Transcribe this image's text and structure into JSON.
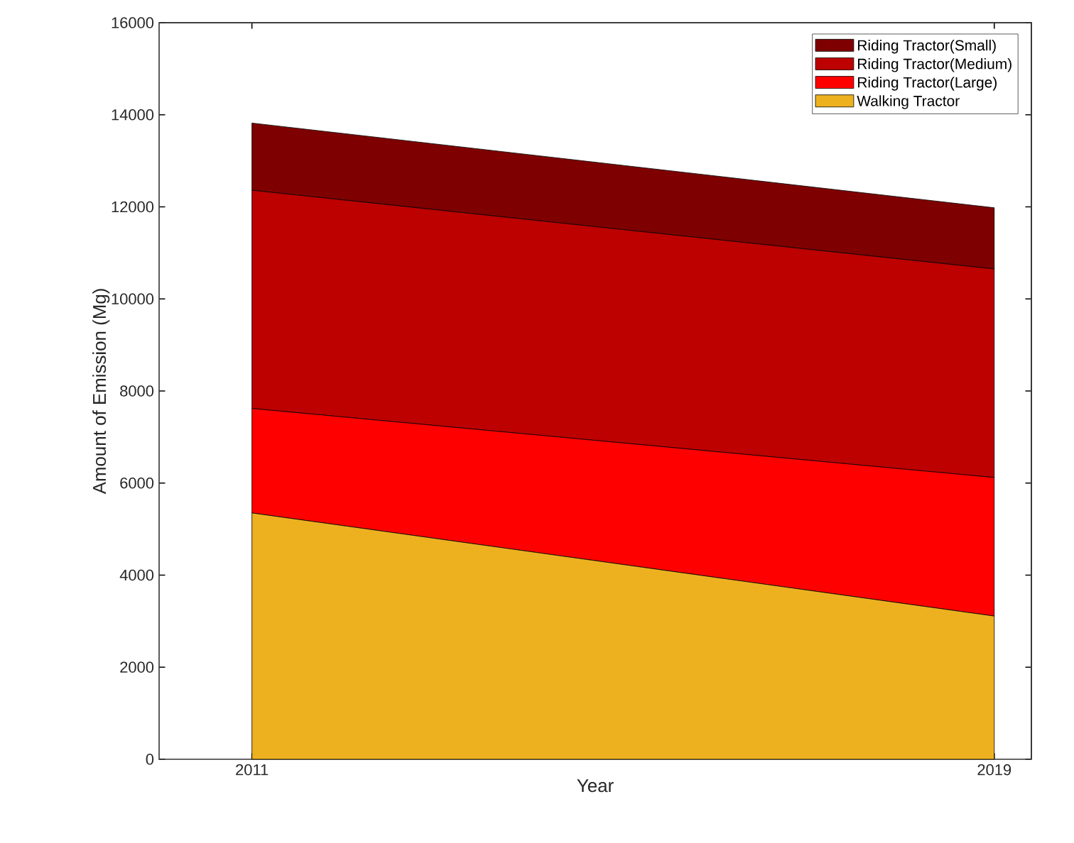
{
  "chart_data": {
    "type": "area",
    "stacked": true,
    "xlabel": "Year",
    "ylabel": "Amount of Emission (Mg)",
    "x": [
      2011,
      2019
    ],
    "series": [
      {
        "name": "Walking Tractor",
        "color": "#edb120",
        "values": [
          5350,
          3110
        ]
      },
      {
        "name": "Riding Tractor(Large)",
        "color": "#ff0000",
        "values": [
          2270,
          3010
        ]
      },
      {
        "name": "Riding Tractor(Medium)",
        "color": "#bd0000",
        "values": [
          4740,
          4530
        ]
      },
      {
        "name": "Riding Tractor(Small)",
        "color": "#7e0000",
        "values": [
          1460,
          1330
        ]
      }
    ],
    "xlim": [
      2010,
      2019.4
    ],
    "ylim": [
      0,
      16000
    ],
    "xticks": [
      2011,
      2019
    ],
    "yticks": [
      0,
      2000,
      4000,
      6000,
      8000,
      10000,
      12000,
      14000,
      16000
    ],
    "grid": false,
    "legend": "top right"
  }
}
